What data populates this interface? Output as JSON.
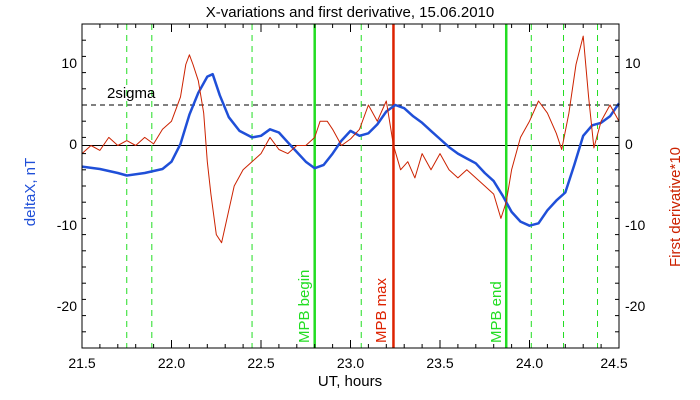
{
  "chart_data": {
    "type": "line",
    "title": "X-variations and first derivative, 15.06.2010",
    "xlabel": "UT, hours",
    "ylabel_left": "deltaX, nT",
    "ylabel_right": "First derivative*10",
    "xlim": [
      21.5,
      24.5
    ],
    "ylim": [
      -25,
      15
    ],
    "x_ticks": [
      "21.5",
      "22.0",
      "22.5",
      "23.0",
      "23.5",
      "24.0",
      "24.5"
    ],
    "y_ticks_left": [
      "10",
      "0",
      "-10",
      "-20"
    ],
    "y_ticks_right": [
      "10",
      "0",
      "-10",
      "-20"
    ],
    "colors": {
      "deltaX": "#1f4fd8",
      "derivative": "#cc2200",
      "green_lines": "#22dd22",
      "red_line": "#dd2200",
      "axes": "#000000"
    },
    "reference_lines": [
      {
        "label": "2sigma",
        "y": 5.0,
        "style": "dashed"
      },
      {
        "label": "",
        "y": 0.0,
        "style": "solid"
      }
    ],
    "vertical_markers": [
      {
        "x": 21.75,
        "style": "dashed",
        "color": "green"
      },
      {
        "x": 21.89,
        "style": "dashed",
        "color": "green"
      },
      {
        "x": 22.45,
        "style": "dashed",
        "color": "green"
      },
      {
        "x": 22.8,
        "style": "solid",
        "color": "green",
        "label": "MPB begin"
      },
      {
        "x": 23.06,
        "style": "dashed",
        "color": "green"
      },
      {
        "x": 23.24,
        "style": "solid",
        "color": "red",
        "label": "MPB max"
      },
      {
        "x": 23.87,
        "style": "solid",
        "color": "green",
        "label": "MPB end"
      },
      {
        "x": 24.01,
        "style": "dashed",
        "color": "green"
      },
      {
        "x": 24.19,
        "style": "dashed",
        "color": "green"
      },
      {
        "x": 24.38,
        "style": "dashed",
        "color": "green"
      }
    ],
    "series": [
      {
        "key": "deltaX",
        "x": [
          21.5,
          21.6,
          21.7,
          21.75,
          21.85,
          21.95,
          22.0,
          22.05,
          22.1,
          22.15,
          22.2,
          22.23,
          22.27,
          22.32,
          22.38,
          22.45,
          22.5,
          22.55,
          22.6,
          22.65,
          22.7,
          22.75,
          22.8,
          22.85,
          22.9,
          22.95,
          23.0,
          23.05,
          23.1,
          23.15,
          23.2,
          23.25,
          23.3,
          23.35,
          23.4,
          23.45,
          23.5,
          23.55,
          23.6,
          23.65,
          23.7,
          23.75,
          23.8,
          23.85,
          23.9,
          23.95,
          24.0,
          24.05,
          24.1,
          24.15,
          24.2,
          24.25,
          24.3,
          24.35,
          24.4,
          24.45,
          24.5
        ],
        "y": [
          -2.6,
          -2.9,
          -3.4,
          -3.7,
          -3.4,
          -2.9,
          -2.0,
          0.2,
          3.8,
          6.5,
          8.5,
          8.8,
          6.2,
          3.5,
          1.8,
          1.0,
          1.2,
          2.0,
          1.6,
          0.4,
          -0.8,
          -2.0,
          -2.8,
          -2.4,
          -1.0,
          0.6,
          1.8,
          1.2,
          1.5,
          2.6,
          4.2,
          5.0,
          4.6,
          3.6,
          2.8,
          1.8,
          0.8,
          -0.2,
          -1.0,
          -1.6,
          -2.2,
          -3.4,
          -4.4,
          -6.2,
          -8.2,
          -9.4,
          -9.9,
          -9.6,
          -8.0,
          -6.8,
          -5.8,
          -2.4,
          1.2,
          2.5,
          2.8,
          3.6,
          5.2
        ]
      },
      {
        "key": "derivative",
        "x": [
          21.5,
          21.55,
          21.6,
          21.65,
          21.7,
          21.75,
          21.8,
          21.85,
          21.9,
          21.95,
          22.0,
          22.05,
          22.08,
          22.1,
          22.12,
          22.15,
          22.18,
          22.2,
          22.22,
          22.25,
          22.28,
          22.3,
          22.32,
          22.35,
          22.4,
          22.45,
          22.5,
          22.55,
          22.6,
          22.65,
          22.7,
          22.75,
          22.8,
          22.83,
          22.87,
          22.9,
          22.95,
          23.0,
          23.05,
          23.1,
          23.15,
          23.2,
          23.24,
          23.28,
          23.32,
          23.36,
          23.4,
          23.45,
          23.5,
          23.55,
          23.6,
          23.65,
          23.7,
          23.75,
          23.8,
          23.84,
          23.87,
          23.9,
          23.95,
          24.0,
          24.05,
          24.1,
          24.15,
          24.18,
          24.22,
          24.26,
          24.3,
          24.33,
          24.36,
          24.4,
          24.45,
          24.5
        ],
        "y": [
          -1.0,
          0.0,
          -0.6,
          1.0,
          0.0,
          0.6,
          0.0,
          1.0,
          0.2,
          2.0,
          3.0,
          6.0,
          10.0,
          11.2,
          10.0,
          8.0,
          4.0,
          -2.0,
          -6.0,
          -11.0,
          -12.0,
          -10.0,
          -8.0,
          -5.0,
          -3.0,
          -2.0,
          -1.0,
          1.0,
          -0.5,
          -1.0,
          0.0,
          0.0,
          1.0,
          3.0,
          3.0,
          2.0,
          0.0,
          0.8,
          2.0,
          5.0,
          3.0,
          5.5,
          0.0,
          -3.0,
          -2.0,
          -4.0,
          -1.0,
          -3.0,
          -1.0,
          -3.0,
          -4.0,
          -3.0,
          -4.0,
          -5.0,
          -6.0,
          -9.0,
          -7.0,
          -3.0,
          1.0,
          3.0,
          5.5,
          4.0,
          1.5,
          -0.5,
          4.0,
          10.0,
          13.5,
          6.0,
          -0.3,
          3.0,
          5.0,
          3.0
        ]
      }
    ]
  }
}
